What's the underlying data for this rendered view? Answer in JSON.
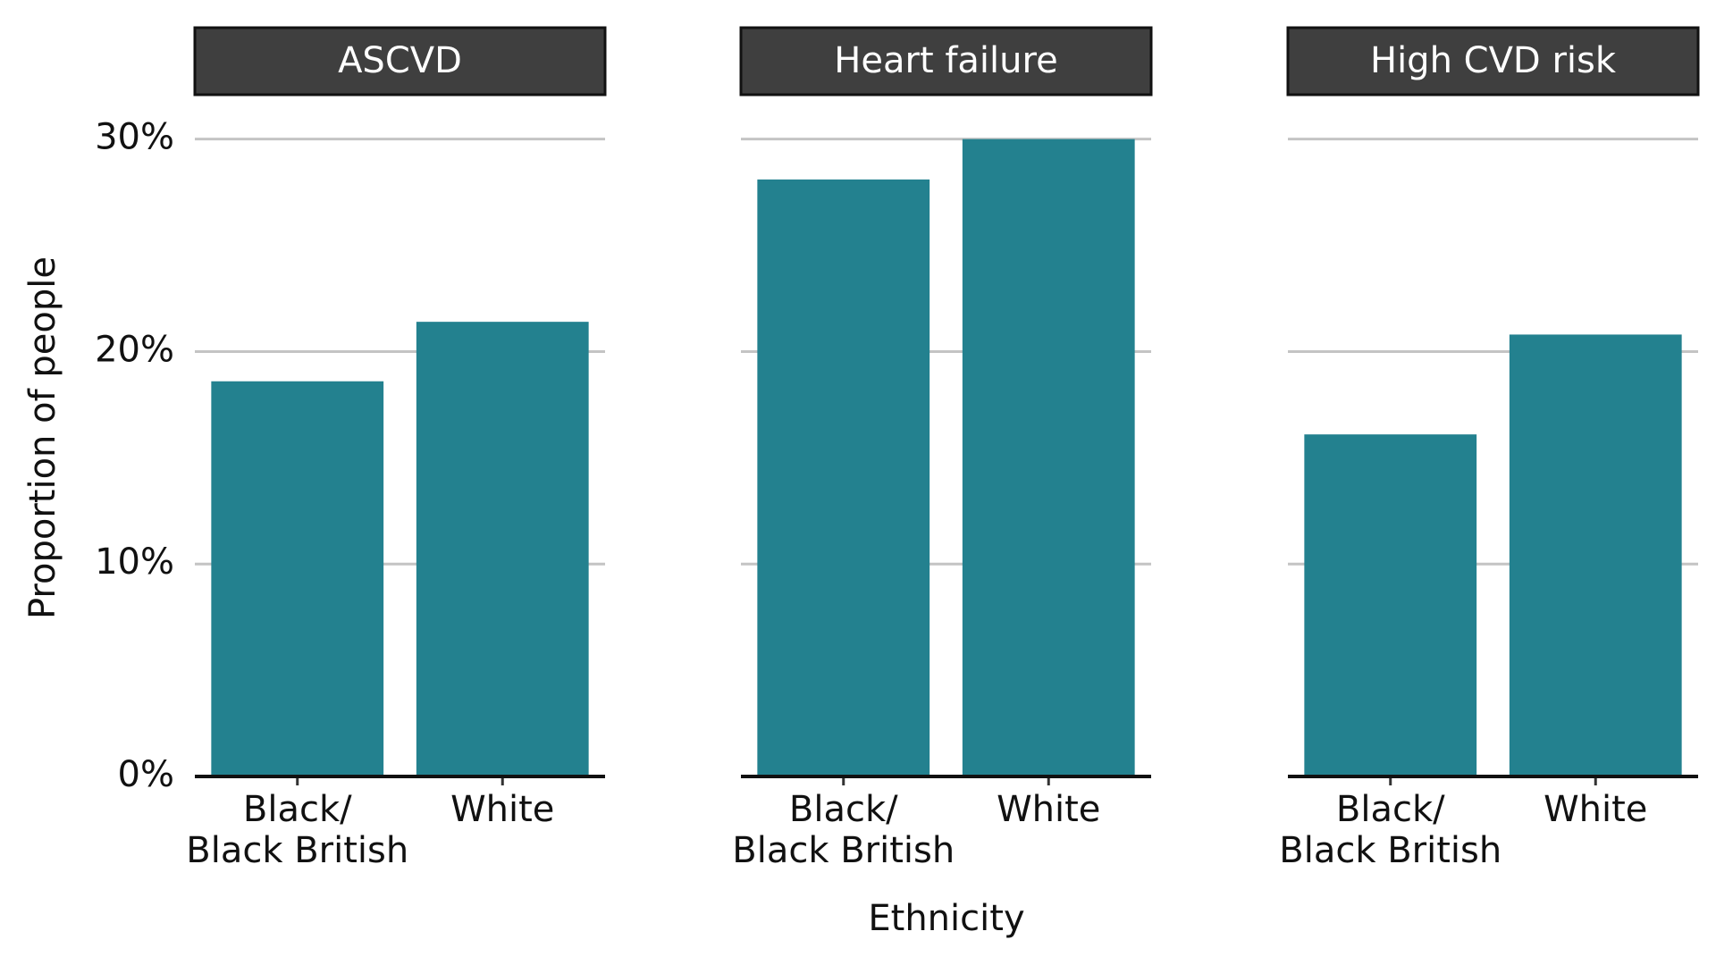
{
  "chart_data": {
    "type": "bar",
    "ylabel": "Proportion of people",
    "xlabel": "Ethnicity",
    "categories": [
      "Black/\nBlack British",
      "White"
    ],
    "color": "#23818f",
    "ylim": [
      0,
      31.5
    ],
    "yticks": [
      {
        "value": 0,
        "label": "0%"
      },
      {
        "value": 10,
        "label": "10%"
      },
      {
        "value": 20,
        "label": "20%"
      },
      {
        "value": 30,
        "label": "30%"
      }
    ],
    "grid": true,
    "facets": [
      {
        "title": "ASCVD",
        "values": [
          18.6,
          21.4
        ]
      },
      {
        "title": "Heart failure",
        "values": [
          28.1,
          30.0
        ]
      },
      {
        "title": "High CVD risk",
        "values": [
          16.1,
          20.8
        ]
      }
    ]
  }
}
